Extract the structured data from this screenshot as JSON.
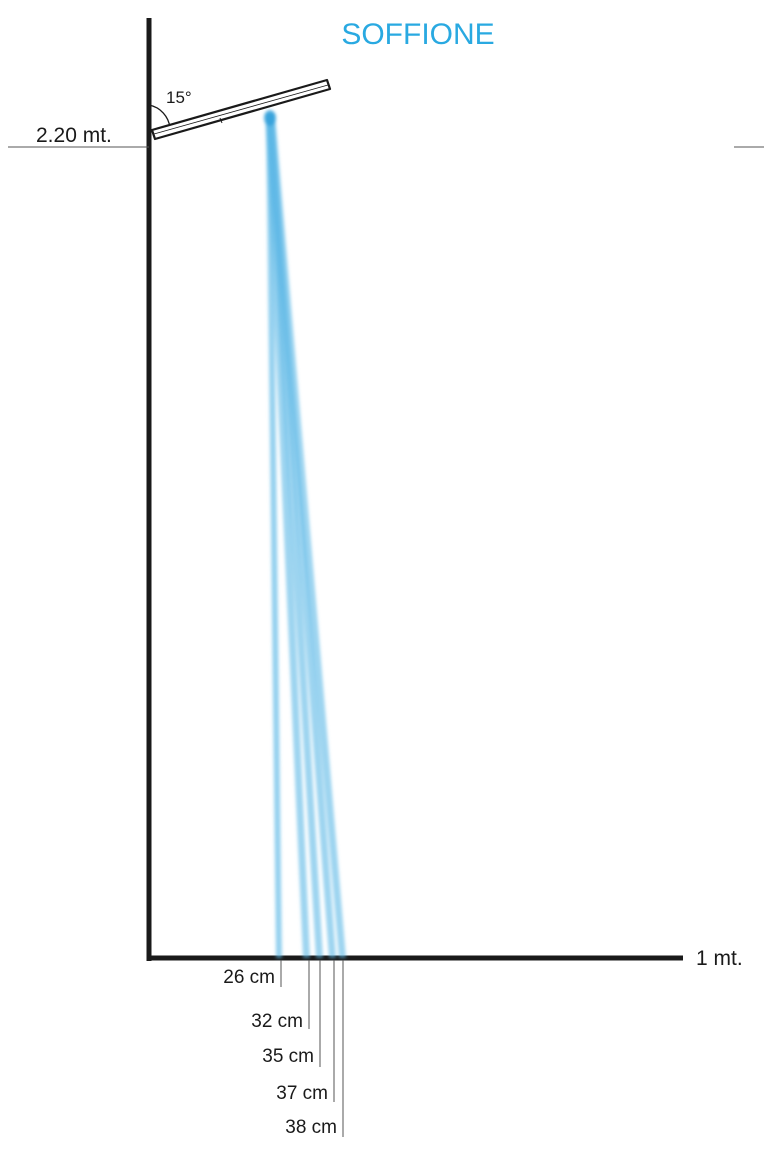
{
  "diagram": {
    "title": "SOFFIONE",
    "angle_label": "15°",
    "height_label": "2.20 mt.",
    "floor_label": "1 mt.",
    "measurements": [
      "26 cm",
      "32 cm",
      "35 cm",
      "37 cm",
      "38 cm"
    ]
  },
  "colors": {
    "title": "#29a9e1",
    "beam": "#5cb8e6",
    "beam_core": "#2f9fd9",
    "axis": "#1a1a1a",
    "guide": "#555555"
  }
}
